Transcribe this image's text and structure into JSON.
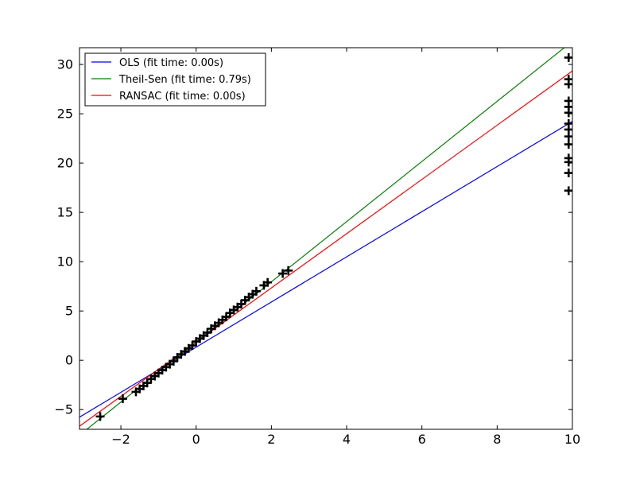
{
  "chart_data": {
    "type": "scatter",
    "title": "",
    "xlabel": "",
    "ylabel": "",
    "xlim": [
      -3.1,
      10
    ],
    "ylim": [
      -7,
      31.7
    ],
    "xticks": [
      -2,
      0,
      2,
      4,
      6,
      8,
      10
    ],
    "yticks": [
      -5,
      0,
      5,
      10,
      15,
      20,
      25,
      30
    ],
    "xtick_labels": [
      "−2",
      "0",
      "2",
      "4",
      "6",
      "8",
      "10"
    ],
    "ytick_labels": [
      "−5",
      "0",
      "5",
      "10",
      "15",
      "20",
      "25",
      "30"
    ],
    "grid": false,
    "legend_position": "top-left",
    "points": {
      "marker": "+",
      "color": "#000000",
      "x": [
        -2.55,
        -1.95,
        -1.6,
        -1.5,
        -1.4,
        -1.3,
        -1.2,
        -1.1,
        -1.0,
        -0.9,
        -0.8,
        -0.7,
        -0.6,
        -0.5,
        -0.4,
        -0.3,
        -0.2,
        -0.1,
        0.0,
        0.1,
        0.2,
        0.3,
        0.4,
        0.5,
        0.6,
        0.7,
        0.8,
        0.9,
        1.0,
        1.1,
        1.2,
        1.3,
        1.4,
        1.5,
        1.6,
        1.8,
        1.9,
        2.3,
        2.45,
        9.9,
        9.9,
        9.9,
        9.9,
        9.9,
        9.9,
        9.9,
        9.9,
        9.9,
        9.9,
        9.9,
        9.9,
        9.9,
        9.9
      ],
      "y": [
        -5.7,
        -3.9,
        -3.2,
        -2.9,
        -2.6,
        -2.3,
        -1.9,
        -1.6,
        -1.3,
        -1.0,
        -0.7,
        -0.4,
        -0.1,
        0.3,
        0.6,
        0.9,
        1.2,
        1.5,
        1.9,
        2.2,
        2.5,
        2.8,
        3.2,
        3.5,
        3.8,
        4.1,
        4.4,
        4.8,
        5.1,
        5.4,
        5.7,
        6.1,
        6.4,
        6.7,
        7.0,
        7.6,
        7.9,
        8.8,
        9.1,
        30.7,
        28.5,
        28.0,
        26.3,
        25.7,
        25.1,
        24.0,
        23.4,
        22.7,
        21.9,
        20.5,
        20.1,
        19.0,
        17.2
      ]
    },
    "series": [
      {
        "name": "OLS (fit time: 0.00s)",
        "color": "#0000ff",
        "intercept": 1.33,
        "slope": 2.29
      },
      {
        "name": "Theil-Sen (fit time: 0.79s)",
        "color": "#008000",
        "intercept": 1.86,
        "slope": 3.05
      },
      {
        "name": "RANSAC (fit time: 0.00s)",
        "color": "#ff0000",
        "intercept": 1.84,
        "slope": 2.75
      }
    ]
  }
}
